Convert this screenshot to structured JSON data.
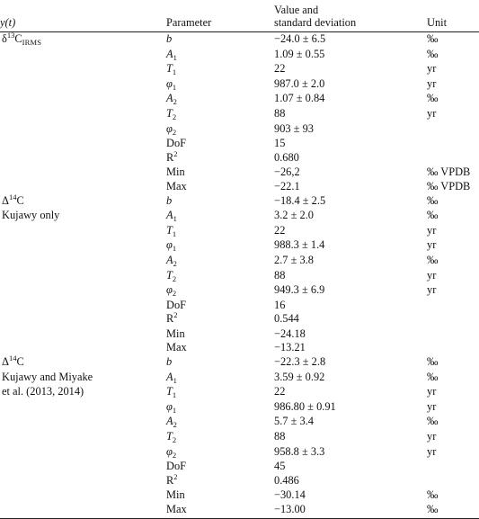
{
  "header": {
    "col1": "y(t)",
    "col2": "Parameter",
    "col3_line1": "Value and",
    "col3_line2": "standard deviation",
    "col4": "Unit"
  },
  "groups": [
    {
      "label_lines": [
        "δ13CIRMS"
      ],
      "rows": [
        {
          "param": "b",
          "value": "−24.0 ± 6.5",
          "unit": "‰"
        },
        {
          "param": "A1",
          "value": "1.09 ± 0.55",
          "unit": "‰"
        },
        {
          "param": "T1",
          "value": "22",
          "unit": "yr"
        },
        {
          "param": "φ1",
          "value": "987.0 ± 2.0",
          "unit": "yr"
        },
        {
          "param": "A2",
          "value": "1.07 ± 0.84",
          "unit": "‰"
        },
        {
          "param": "T2",
          "value": "88",
          "unit": "yr"
        },
        {
          "param": "φ2",
          "value": "903 ± 93",
          "unit": ""
        },
        {
          "param": "DoF",
          "value": "15",
          "unit": ""
        },
        {
          "param": "R2",
          "value": "0.680",
          "unit": ""
        },
        {
          "param": "Min",
          "value": "−26,2",
          "unit": "‰ VPDB"
        },
        {
          "param": "Max",
          "value": "−22.1",
          "unit": "‰ VPDB"
        }
      ]
    },
    {
      "label_lines": [
        "Δ14C",
        "Kujawy only"
      ],
      "rows": [
        {
          "param": "b",
          "value": "−18.4 ± 2.5",
          "unit": "‰"
        },
        {
          "param": "A1",
          "value": "3.2 ± 2.0",
          "unit": "‰"
        },
        {
          "param": "T1",
          "value": "22",
          "unit": "yr"
        },
        {
          "param": "φ1",
          "value": "988.3 ± 1.4",
          "unit": "yr"
        },
        {
          "param": "A2",
          "value": "2.7 ± 3.8",
          "unit": "‰"
        },
        {
          "param": "T2",
          "value": "88",
          "unit": "yr"
        },
        {
          "param": "φ2",
          "value": "949.3 ± 6.9",
          "unit": "yr"
        },
        {
          "param": "DoF",
          "value": "16",
          "unit": ""
        },
        {
          "param": "R2",
          "value": "0.544",
          "unit": ""
        },
        {
          "param": "Min",
          "value": "−24.18",
          "unit": ""
        },
        {
          "param": "Max",
          "value": "−13.21",
          "unit": ""
        }
      ]
    },
    {
      "label_lines": [
        "Δ14C",
        "Kujawy and Miyake",
        "et al. (2013, 2014)"
      ],
      "rows": [
        {
          "param": "b",
          "value": "−22.3 ± 2.8",
          "unit": "‰"
        },
        {
          "param": "A1",
          "value": "3.59 ± 0.92",
          "unit": "‰"
        },
        {
          "param": "T1",
          "value": "22",
          "unit": "yr"
        },
        {
          "param": "φ1",
          "value": "986.80 ± 0.91",
          "unit": "yr"
        },
        {
          "param": "A2",
          "value": "5.7 ± 3.4",
          "unit": "‰"
        },
        {
          "param": "T2",
          "value": "88",
          "unit": "yr"
        },
        {
          "param": "φ2",
          "value": "958.8 ± 3.3",
          "unit": "yr"
        },
        {
          "param": "DoF",
          "value": "45",
          "unit": ""
        },
        {
          "param": "R2",
          "value": "0.486",
          "unit": ""
        },
        {
          "param": "Min",
          "value": "−30.14",
          "unit": "‰"
        },
        {
          "param": "Max",
          "value": "−13.00",
          "unit": "‰"
        }
      ]
    }
  ]
}
